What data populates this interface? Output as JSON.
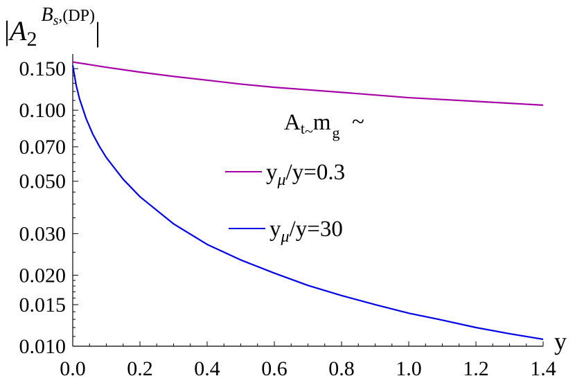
{
  "chart_data": {
    "type": "line",
    "y_scale": "log",
    "y_title": {
      "A": "A",
      "sub": "2",
      "sup_B": "B",
      "sup_s": "s",
      "sup_rest": ",(DP)"
    },
    "x_title": "y",
    "xlim": [
      0,
      1.4
    ],
    "ylim": [
      0.01,
      0.165
    ],
    "x_ticks": [
      0.0,
      0.2,
      0.4,
      0.6,
      0.8,
      1.0,
      1.2,
      1.4
    ],
    "x_tick_labels": [
      "0.0",
      "0.2",
      "0.4",
      "0.6",
      "0.8",
      "1.0",
      "1.2",
      "1.4"
    ],
    "y_ticks": [
      0.01,
      0.015,
      0.02,
      0.03,
      0.05,
      0.07,
      0.1,
      0.15
    ],
    "y_tick_labels": [
      "0.010",
      "0.015",
      "0.020",
      "0.030",
      "0.050",
      "0.070",
      "0.100",
      "0.150"
    ],
    "legend": {
      "title_main": "A",
      "title_sub": "t",
      "title_tilde": "~",
      "title_m": "m",
      "title_m_sub": "g",
      "title_m_sub_tilde": "~",
      "entries": [
        {
          "prefix": "y",
          "sub": "μ",
          "suffix": "/y=0.3",
          "color": "#a500a5"
        },
        {
          "prefix": "y",
          "sub": "μ",
          "suffix": "/y=30",
          "color": "#0000e6"
        }
      ]
    },
    "series": [
      {
        "color": "#a500a5",
        "x": [
          0.0,
          0.05,
          0.1,
          0.2,
          0.3,
          0.4,
          0.5,
          0.6,
          0.7,
          0.8,
          0.9,
          1.0,
          1.1,
          1.2,
          1.3,
          1.4
        ],
        "y": [
          0.16,
          0.156,
          0.152,
          0.145,
          0.139,
          0.134,
          0.129,
          0.125,
          0.122,
          0.119,
          0.116,
          0.113,
          0.111,
          0.109,
          0.107,
          0.105
        ]
      },
      {
        "color": "#0000e6",
        "x": [
          0.0,
          0.01,
          0.02,
          0.04,
          0.06,
          0.08,
          0.1,
          0.15,
          0.2,
          0.3,
          0.4,
          0.5,
          0.6,
          0.7,
          0.8,
          0.9,
          1.0,
          1.1,
          1.2,
          1.3,
          1.4
        ],
        "y": [
          0.155,
          0.128,
          0.112,
          0.092,
          0.079,
          0.07,
          0.063,
          0.051,
          0.043,
          0.033,
          0.027,
          0.0232,
          0.0204,
          0.0181,
          0.0164,
          0.015,
          0.0138,
          0.0129,
          0.012,
          0.0113,
          0.0107
        ]
      }
    ]
  }
}
